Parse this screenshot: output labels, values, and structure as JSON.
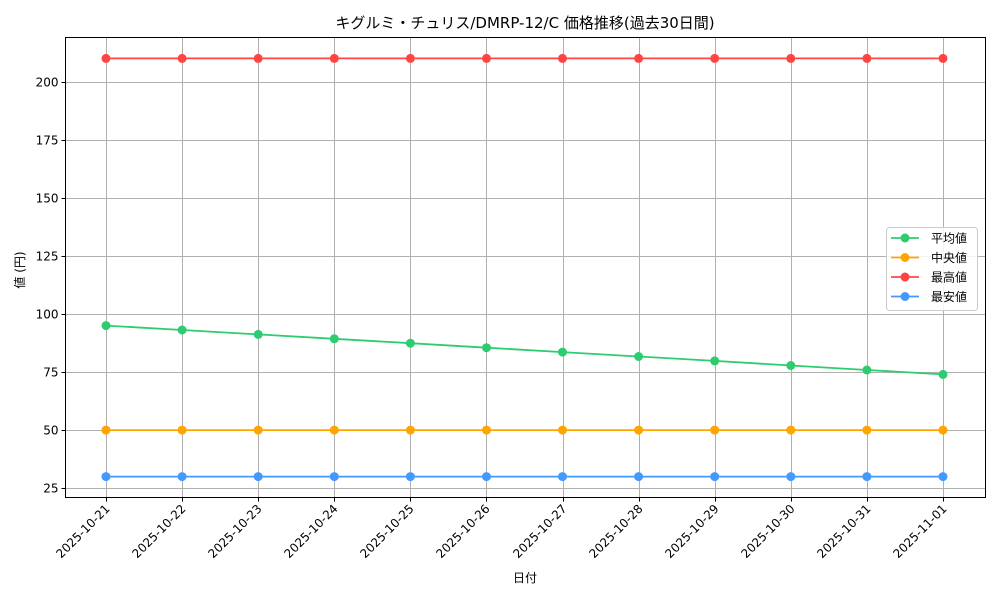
{
  "chart_data": {
    "type": "line",
    "title": "キグルミ・チュリス/DMRP-12/C 価格推移(過去30日間)",
    "xlabel": "日付",
    "ylabel": "値 (円)",
    "categories": [
      "2025-10-21",
      "2025-10-22",
      "2025-10-23",
      "2025-10-24",
      "2025-10-25",
      "2025-10-26",
      "2025-10-27",
      "2025-10-28",
      "2025-10-29",
      "2025-10-30",
      "2025-10-31",
      "2025-11-01"
    ],
    "series": [
      {
        "name": "平均値",
        "color": "#2ecc71",
        "values": [
          95.0,
          93.1,
          91.2,
          89.3,
          87.4,
          85.5,
          83.6,
          81.7,
          79.8,
          77.8,
          75.9,
          74.0
        ]
      },
      {
        "name": "中央値",
        "color": "#ffa500",
        "values": [
          50,
          50,
          50,
          50,
          50,
          50,
          50,
          50,
          50,
          50,
          50,
          50
        ]
      },
      {
        "name": "最高値",
        "color": "#ff4444",
        "values": [
          210,
          210,
          210,
          210,
          210,
          210,
          210,
          210,
          210,
          210,
          210,
          210
        ]
      },
      {
        "name": "最安値",
        "color": "#4499ff",
        "values": [
          30,
          30,
          30,
          30,
          30,
          30,
          30,
          30,
          30,
          30,
          30,
          30
        ]
      }
    ],
    "yticks": [
      25,
      50,
      75,
      100,
      125,
      150,
      175,
      200
    ],
    "ylim": [
      21,
      219
    ],
    "grid": true,
    "legend_position": "center right",
    "x_tick_rotation": 45
  }
}
